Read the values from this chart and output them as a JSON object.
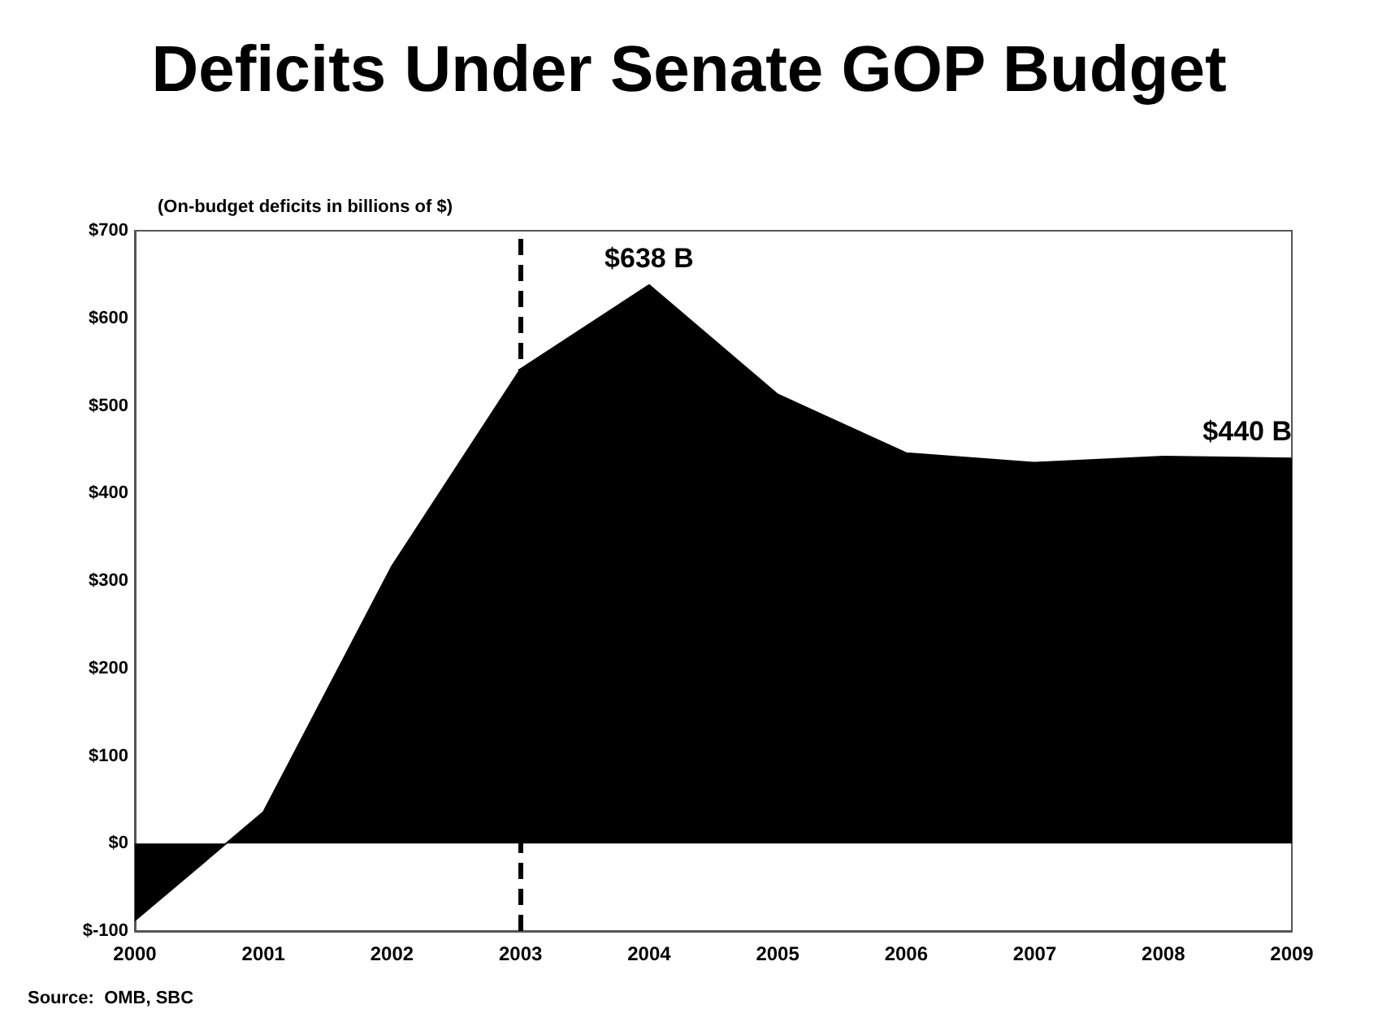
{
  "chart_data": {
    "type": "area",
    "title": "Deficits Under Senate GOP Budget",
    "ylabel": "(On-budget deficits in billions of $)",
    "categories": [
      "2000",
      "2001",
      "2002",
      "2003",
      "2004",
      "2005",
      "2006",
      "2007",
      "2008",
      "2009"
    ],
    "series": [
      {
        "color": "#000000",
        "values": [
          -88,
          36,
          317,
          542,
          638,
          513,
          446,
          435,
          442,
          440
        ]
      }
    ],
    "ylim": [
      -100,
      700
    ],
    "yticks": [
      {
        "value": -100,
        "label": "$-100"
      },
      {
        "value": 0,
        "label": "$0"
      },
      {
        "value": 100,
        "label": "$100"
      },
      {
        "value": 200,
        "label": "$200"
      },
      {
        "value": 300,
        "label": "$300"
      },
      {
        "value": 400,
        "label": "$400"
      },
      {
        "value": 500,
        "label": "$500"
      },
      {
        "value": 600,
        "label": "$600"
      },
      {
        "value": 700,
        "label": "$700"
      }
    ],
    "ref_lines": [
      {
        "axis": "x",
        "value": "2003",
        "color": "#000000",
        "line_style": "dashed"
      }
    ],
    "annotations": [
      {
        "text": "$638 B",
        "x": "2004",
        "y": 638
      },
      {
        "text": "$440 B",
        "x": "2009",
        "y": 440
      },
      "Source:  OMB, SBC"
    ],
    "grid": false
  }
}
